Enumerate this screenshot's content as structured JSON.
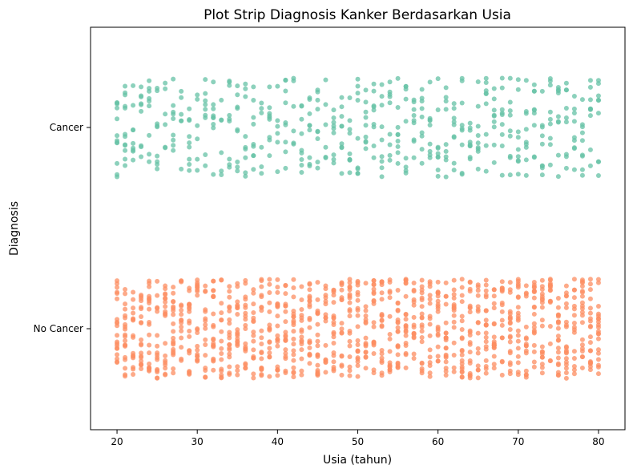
{
  "chart_data": {
    "type": "scatter",
    "subtype": "strip",
    "title": "Plot Strip Diagnosis Kanker Berdasarkan Usia",
    "xlabel": "Usia (tahun)",
    "ylabel": "Diagnosis",
    "xlim": [
      16.7,
      83.3
    ],
    "xticks": [
      20,
      30,
      40,
      50,
      60,
      70,
      80
    ],
    "categories": [
      "Cancer",
      "No Cancer"
    ],
    "grid": false,
    "legend": "none",
    "series": [
      {
        "category": "Cancer",
        "color": "#66c2a5",
        "x_range": [
          20,
          80
        ],
        "approx_count": 530,
        "x": [
          20,
          20,
          20,
          20,
          21,
          21,
          21,
          21,
          22,
          22,
          22,
          23,
          23,
          23,
          24,
          24,
          24,
          25,
          25,
          25,
          26,
          26,
          27,
          27,
          27,
          28,
          28,
          29,
          29,
          29,
          30,
          30,
          31,
          31,
          31,
          32,
          32,
          32,
          33,
          33,
          34,
          34,
          34,
          35,
          35,
          35,
          36,
          36,
          36,
          37,
          37,
          37,
          38,
          38,
          39,
          39,
          39,
          40,
          40,
          41,
          41,
          41,
          42,
          42,
          43,
          43,
          43,
          44,
          44,
          44,
          45,
          45,
          45,
          46,
          46,
          47,
          47,
          47,
          48,
          48,
          48,
          49,
          49,
          49,
          50,
          50,
          50,
          51,
          51,
          51,
          52,
          52,
          52,
          53,
          53,
          53,
          54,
          54,
          54,
          55,
          55,
          55,
          56,
          56,
          56,
          57,
          57,
          57,
          58,
          58,
          58,
          59,
          59,
          59,
          60,
          60,
          60,
          61,
          61,
          61,
          62,
          62,
          62,
          63,
          63,
          63,
          64,
          64,
          64,
          65,
          65,
          65,
          66,
          66,
          66,
          67,
          67,
          67,
          68,
          68,
          68,
          69,
          69,
          69,
          70,
          70,
          70,
          71,
          71,
          71,
          72,
          72,
          72,
          73,
          73,
          73,
          74,
          74,
          74,
          75,
          75,
          75,
          76,
          76,
          76,
          77,
          77,
          77,
          78,
          78,
          78,
          79,
          79,
          79,
          80,
          80,
          80
        ]
      },
      {
        "category": "No Cancer",
        "color": "#fc8d62",
        "x_range": [
          20,
          80
        ],
        "approx_count": 1000,
        "x": [
          20,
          20,
          20,
          20,
          20,
          21,
          21,
          21,
          21,
          21,
          22,
          22,
          22,
          22,
          23,
          23,
          23,
          23,
          23,
          24,
          24,
          24,
          24,
          24,
          25,
          25,
          25,
          25,
          26,
          26,
          26,
          26,
          26,
          27,
          27,
          27,
          27,
          27,
          28,
          28,
          28,
          28,
          29,
          29,
          29,
          29,
          29,
          30,
          30,
          30,
          30,
          30,
          31,
          31,
          31,
          31,
          32,
          32,
          32,
          32,
          32,
          33,
          33,
          33,
          33,
          34,
          34,
          34,
          34,
          34,
          35,
          35,
          35,
          35,
          35,
          36,
          36,
          36,
          36,
          36,
          37,
          37,
          37,
          37,
          38,
          38,
          38,
          38,
          38,
          39,
          39,
          39,
          39,
          40,
          40,
          40,
          40,
          40,
          41,
          41,
          41,
          41,
          41,
          42,
          42,
          42,
          42,
          42,
          43,
          43,
          43,
          43,
          44,
          44,
          44,
          44,
          44,
          45,
          45,
          45,
          45,
          45,
          46,
          46,
          46,
          46,
          47,
          47,
          47,
          47,
          47,
          48,
          48,
          48,
          48,
          49,
          49,
          49,
          49,
          49,
          50,
          50,
          50,
          50,
          50,
          51,
          51,
          51,
          51,
          52,
          52,
          52,
          52,
          52,
          53,
          53,
          53,
          53,
          53,
          54,
          54,
          54,
          54,
          55,
          55,
          55,
          55,
          55,
          56,
          56,
          56,
          56,
          56,
          57,
          57,
          57,
          57,
          58,
          58,
          58,
          58,
          58,
          59,
          59,
          59,
          59,
          60,
          60,
          60,
          60,
          60,
          61,
          61,
          61,
          61,
          61,
          62,
          62,
          62,
          62,
          63,
          63,
          63,
          63,
          63,
          64,
          64,
          64,
          64,
          64,
          65,
          65,
          65,
          65,
          66,
          66,
          66,
          66,
          66,
          67,
          67,
          67,
          67,
          67,
          68,
          68,
          68,
          68,
          69,
          69,
          69,
          69,
          69,
          70,
          70,
          70,
          70,
          70,
          71,
          71,
          71,
          71,
          72,
          72,
          72,
          72,
          72,
          73,
          73,
          73,
          73,
          73,
          74,
          74,
          74,
          74,
          75,
          75,
          75,
          75,
          75,
          76,
          76,
          76,
          76,
          76,
          77,
          77,
          77,
          77,
          78,
          78,
          78,
          78,
          78,
          79,
          79,
          79,
          79,
          79,
          80,
          80,
          80,
          80,
          80
        ]
      }
    ]
  }
}
